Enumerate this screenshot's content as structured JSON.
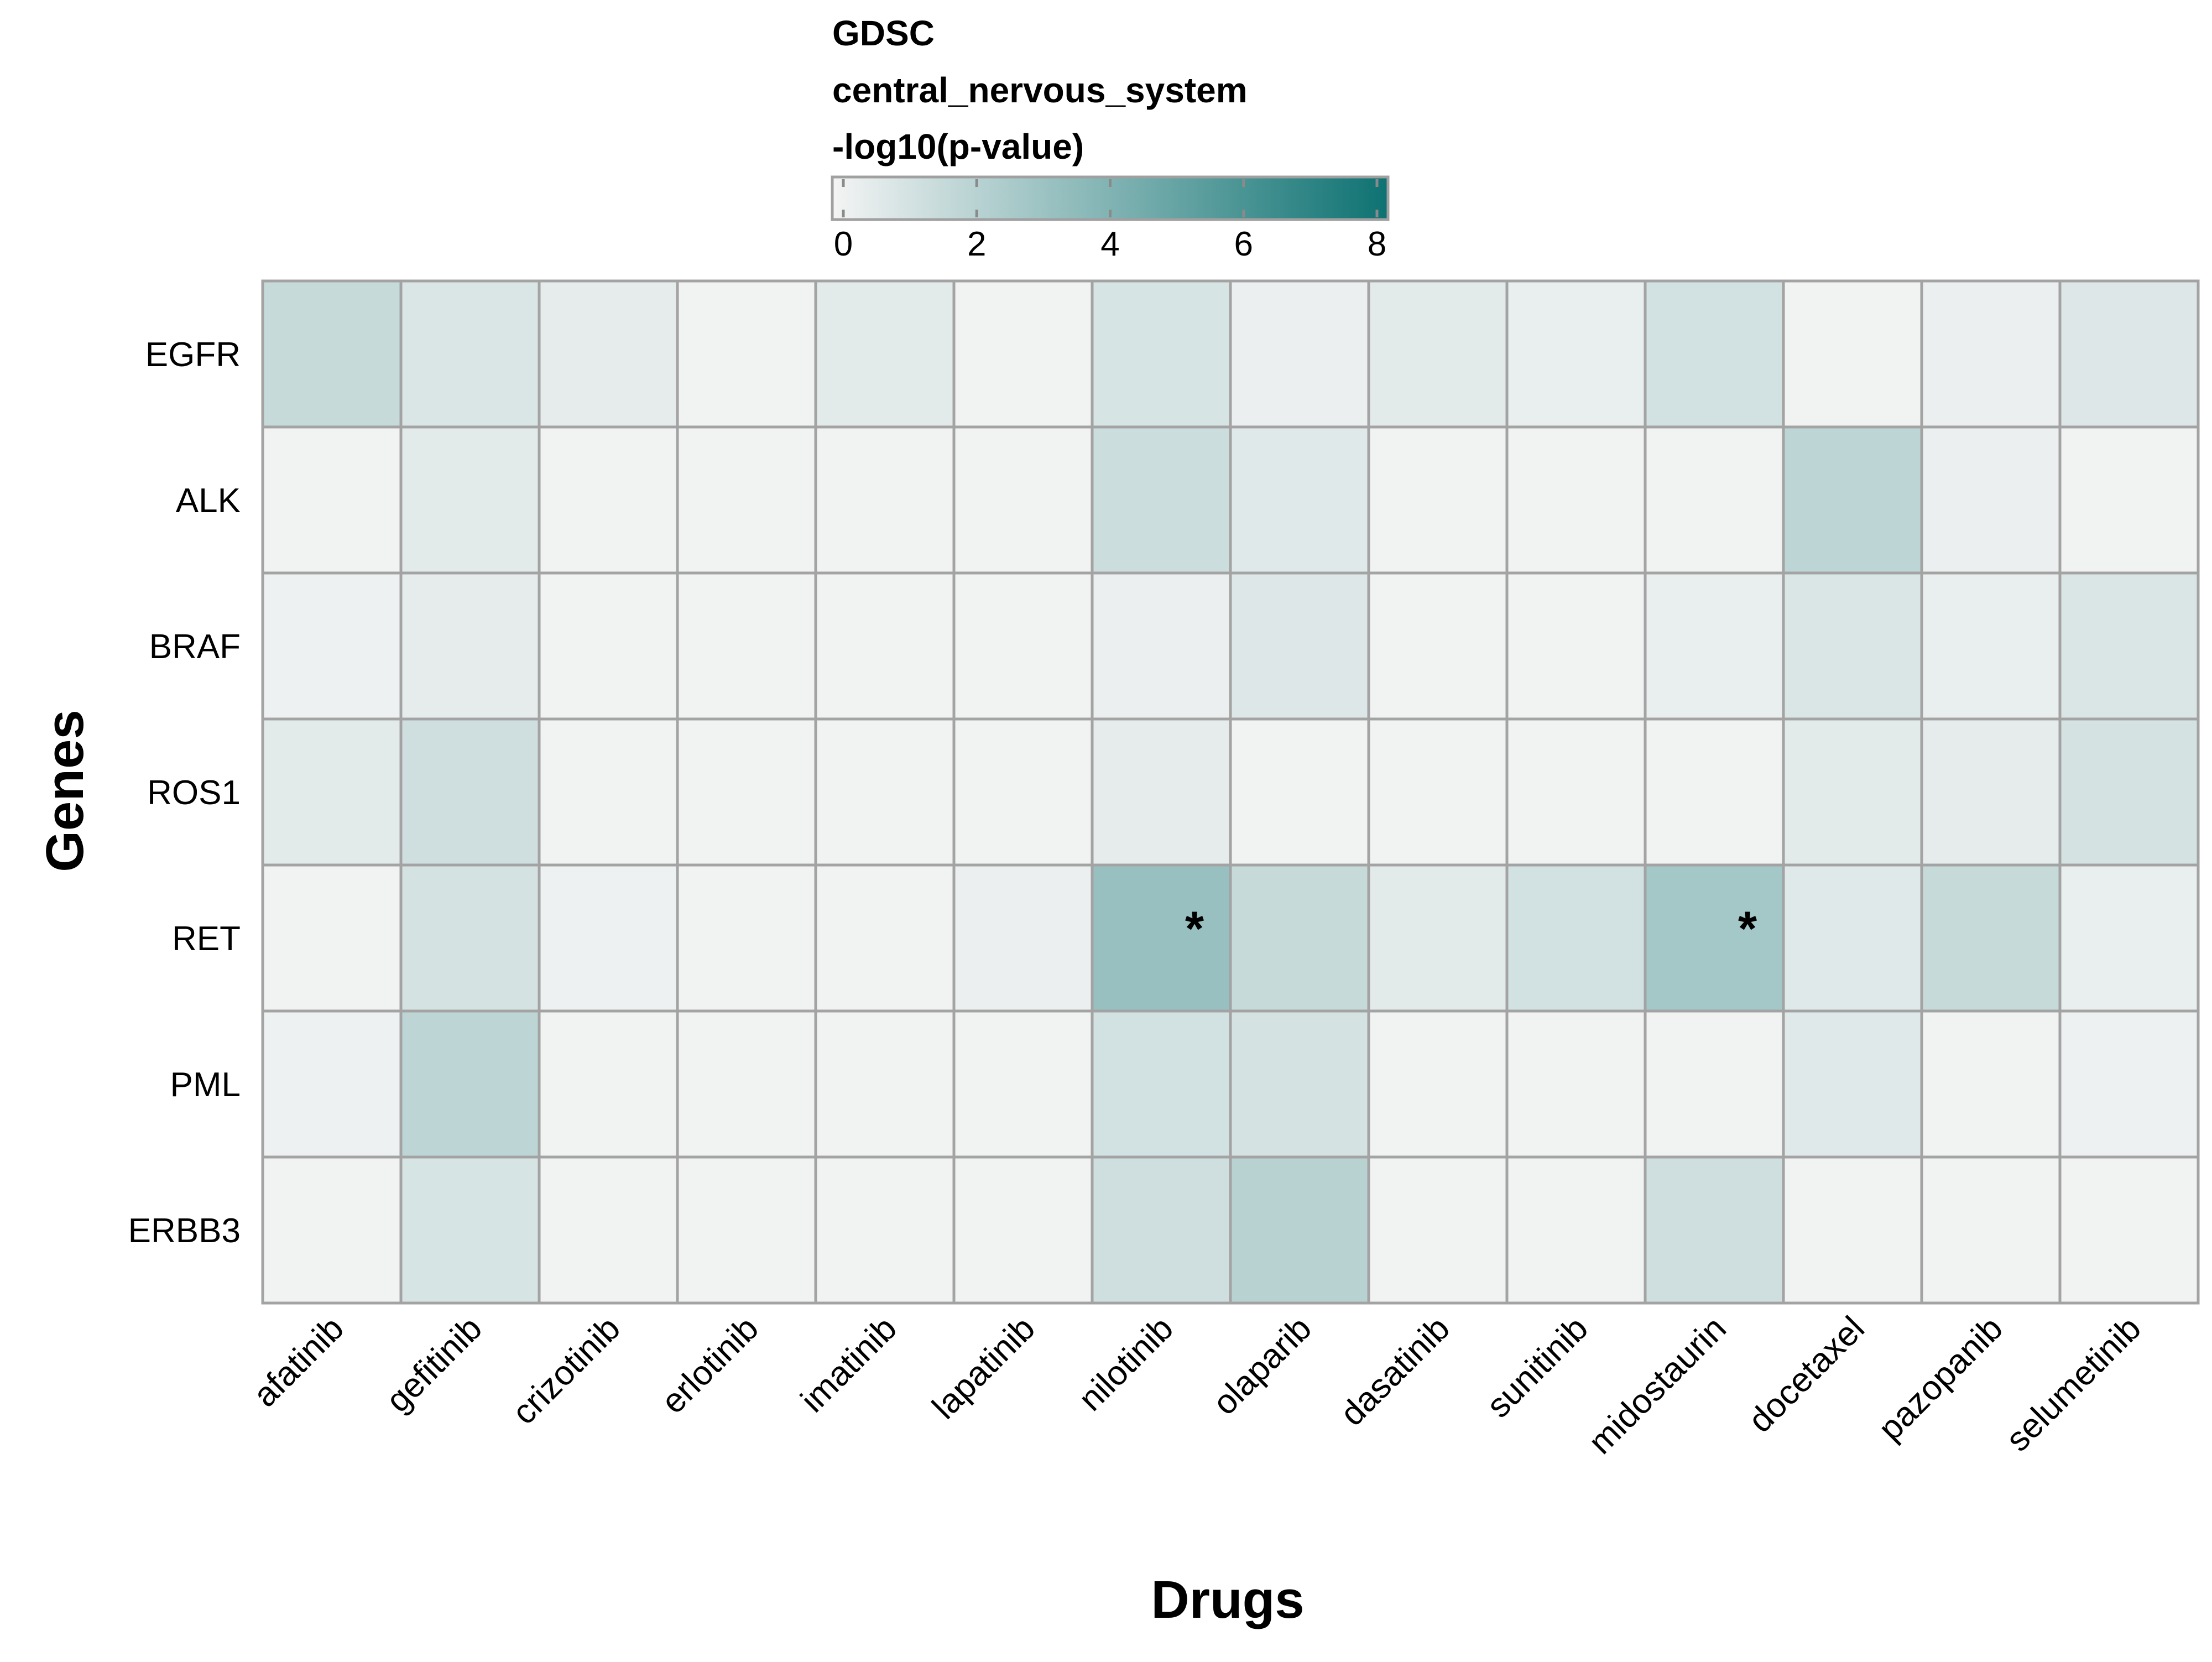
{
  "chart_data": {
    "type": "heatmap",
    "legend": {
      "title_lines": [
        "GDSC",
        "central_nervous_system",
        "-log10(p-value)"
      ],
      "min": 0,
      "max": 8,
      "ticks": [
        0,
        2,
        4,
        6,
        8
      ],
      "color_low": "#f4f4f4",
      "color_high": "#0e7272"
    },
    "xlabel": "Drugs",
    "ylabel": "Genes",
    "columns": [
      "afatinib",
      "gefitinib",
      "crizotinib",
      "erlotinib",
      "imatinib",
      "lapatinib",
      "nilotinib",
      "olaparib",
      "dasatinib",
      "sunitinib",
      "midostaurin",
      "docetaxel",
      "pazopanib",
      "selumetinib"
    ],
    "rows": [
      "EGFR",
      "ALK",
      "BRAF",
      "ROS1",
      "RET",
      "PML",
      "ERBB3"
    ],
    "values": [
      [
        1.6,
        0.9,
        0.5,
        0.1,
        0.6,
        0.1,
        1.0,
        0.3,
        0.6,
        0.4,
        1.2,
        0.1,
        0.3,
        0.8
      ],
      [
        0.1,
        0.6,
        0.1,
        0.1,
        0.1,
        0.1,
        1.4,
        0.7,
        0.1,
        0.1,
        0.1,
        1.9,
        0.3,
        0.1
      ],
      [
        0.2,
        0.5,
        0.1,
        0.1,
        0.1,
        0.1,
        0.3,
        0.8,
        0.1,
        0.1,
        0.4,
        0.9,
        0.4,
        0.9
      ],
      [
        0.6,
        1.3,
        0.1,
        0.1,
        0.1,
        0.1,
        0.5,
        0.1,
        0.1,
        0.1,
        0.1,
        0.6,
        0.5,
        1.1
      ],
      [
        0.1,
        1.1,
        0.2,
        0.1,
        0.1,
        0.3,
        3.2,
        1.6,
        0.6,
        1.2,
        2.8,
        0.7,
        1.6,
        0.4
      ],
      [
        0.2,
        1.9,
        0.1,
        0.1,
        0.1,
        0.1,
        1.2,
        1.1,
        0.1,
        0.1,
        0.1,
        0.7,
        0.1,
        0.2
      ],
      [
        0.1,
        1.0,
        0.1,
        0.1,
        0.1,
        0.1,
        1.3,
        2.1,
        0.1,
        0.1,
        1.3,
        0.1,
        0.1,
        0.1
      ]
    ],
    "annotations": [
      {
        "row": "RET",
        "column": "nilotinib",
        "text": "*"
      },
      {
        "row": "RET",
        "column": "midostaurin",
        "text": "*"
      }
    ],
    "grid": true,
    "legend_position": "top"
  }
}
